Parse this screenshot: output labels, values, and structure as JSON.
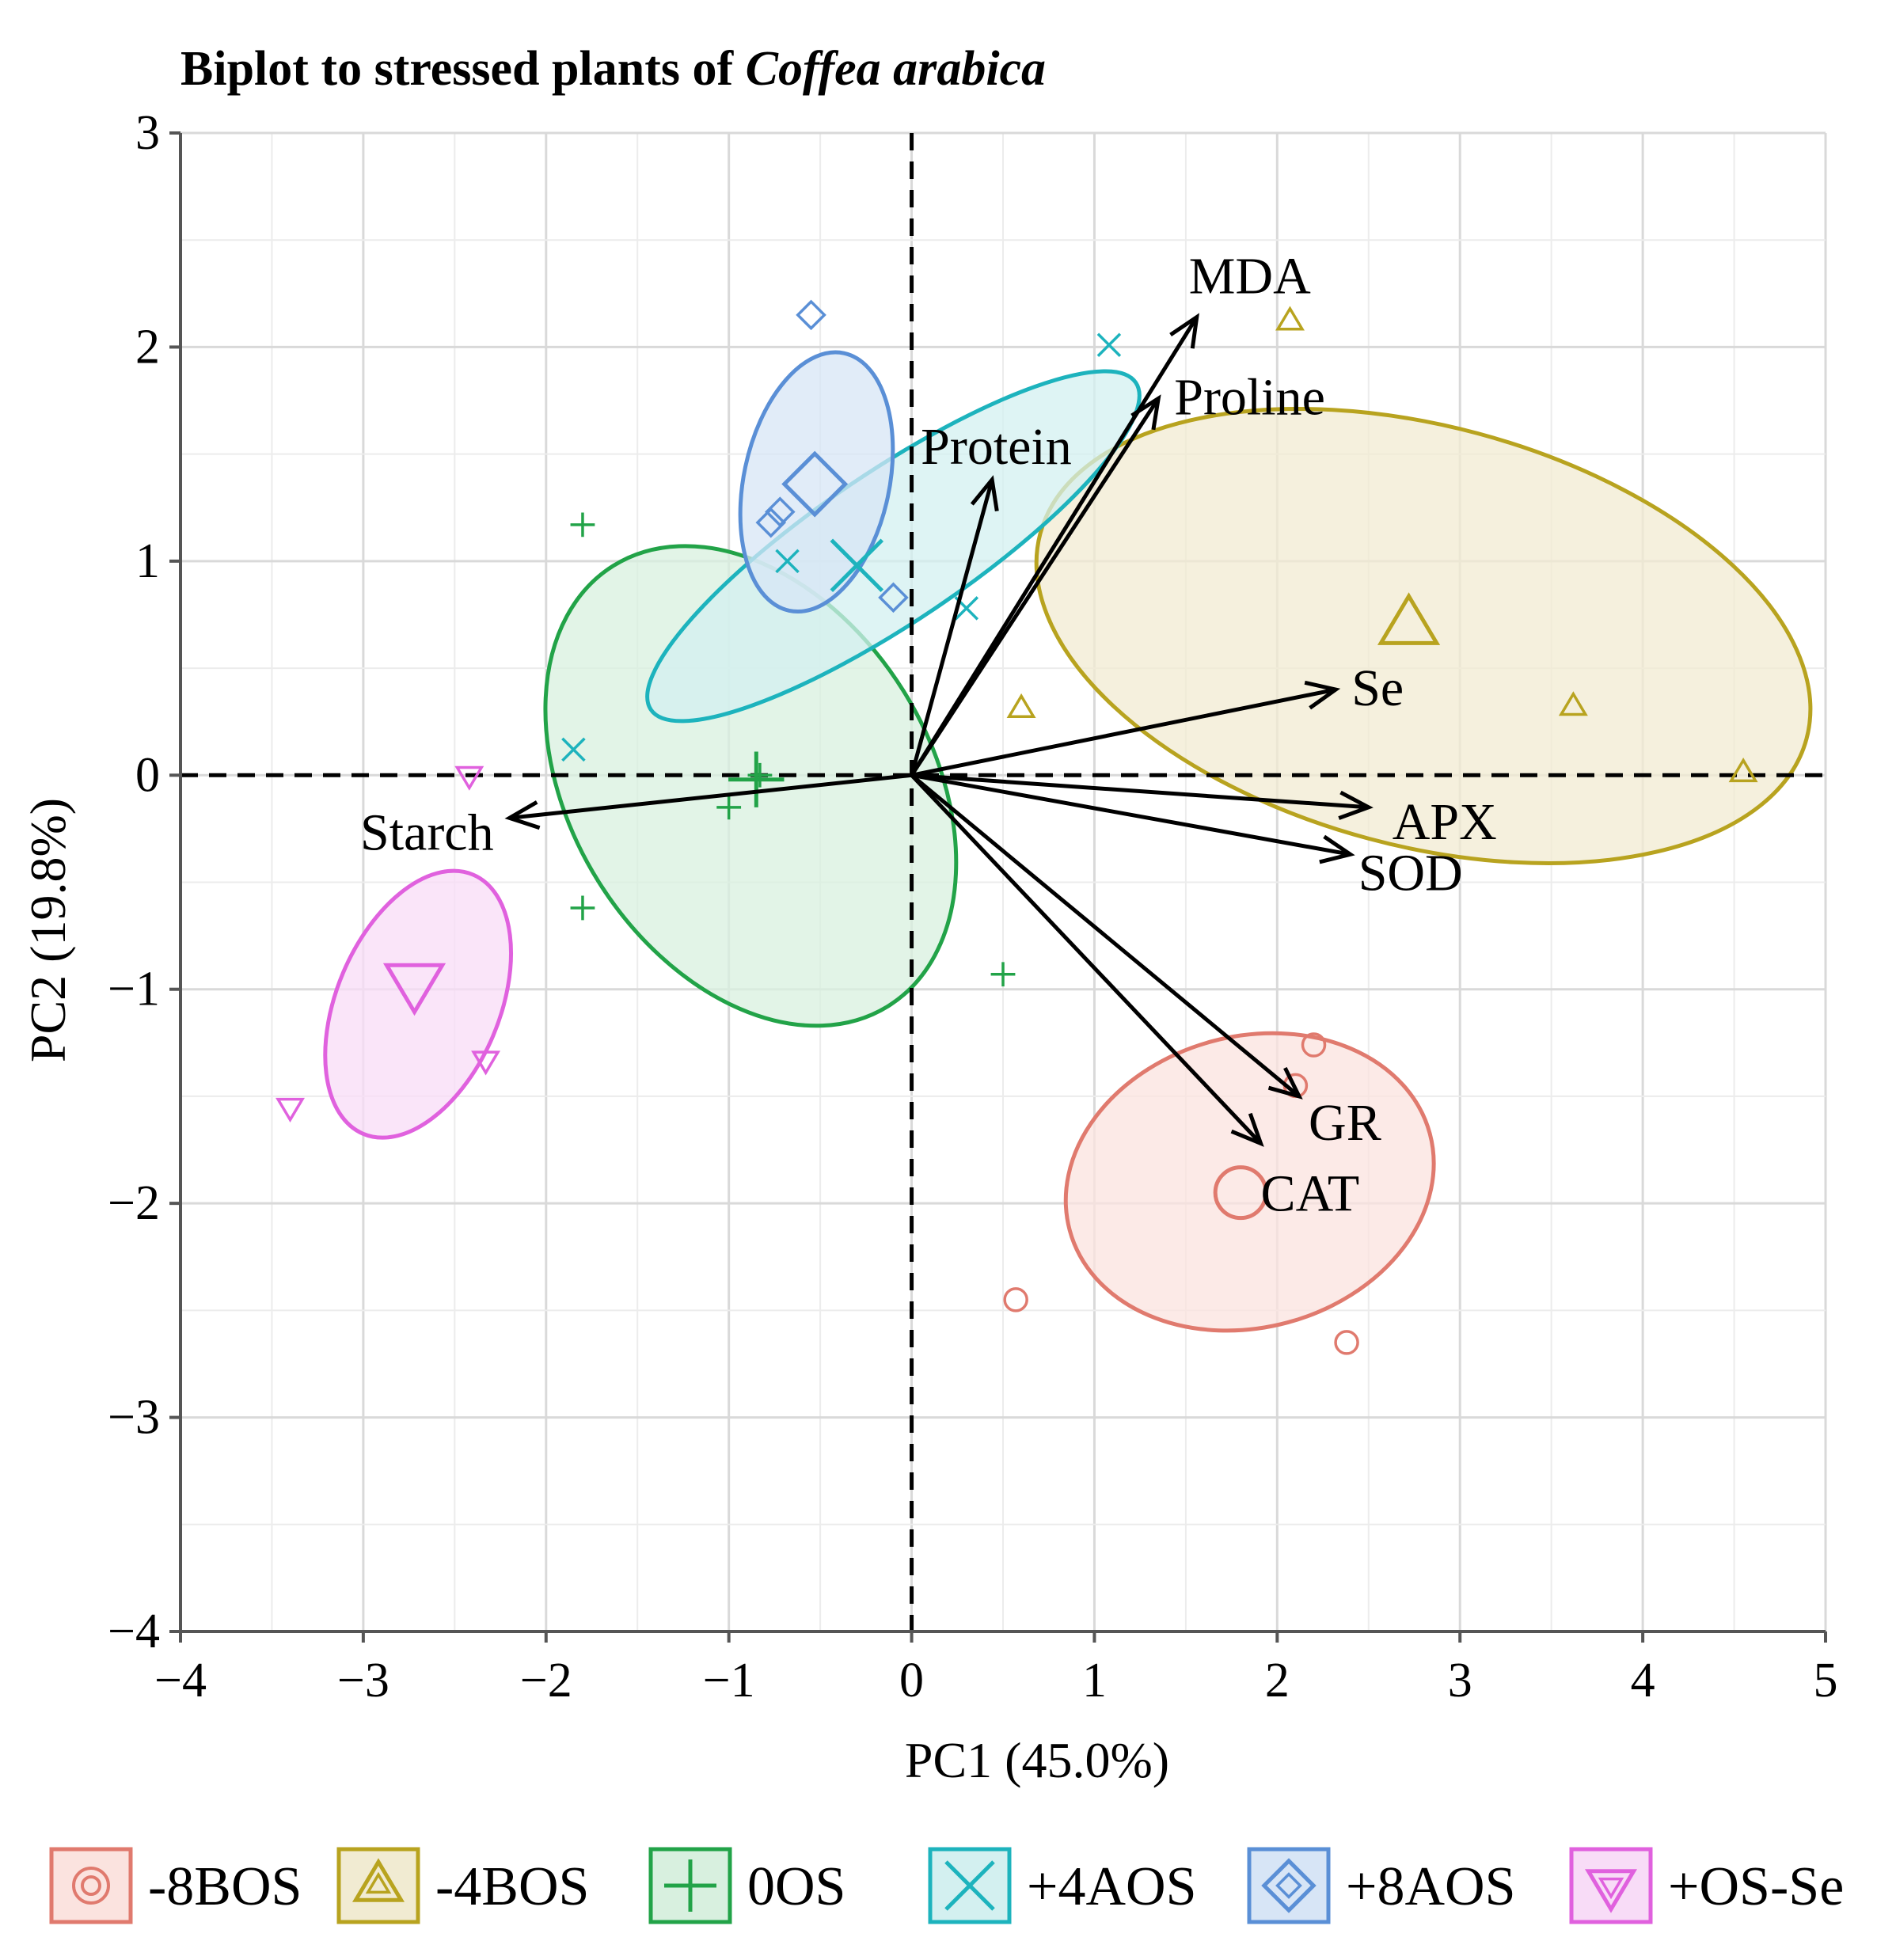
{
  "chart_data": {
    "type": "scatter",
    "title": "Biplot to stressed plants of ",
    "title_italic": "Coffea arabica",
    "xlabel": "PC1 (45.0%)",
    "ylabel": "PC2 (19.8%)",
    "xlim": [
      -4,
      5
    ],
    "ylim": [
      -4,
      3
    ],
    "xticks": [
      -4,
      -3,
      -2,
      -1,
      0,
      1,
      2,
      3,
      4,
      5
    ],
    "yticks": [
      -4,
      -3,
      -2,
      -1,
      0,
      1,
      2,
      3
    ],
    "xtick_labels": [
      "−4",
      "−3",
      "−2",
      "−1",
      "0",
      "1",
      "2",
      "3",
      "4",
      "5"
    ],
    "ytick_labels": [
      "−4",
      "−3",
      "−2",
      "−1",
      "0",
      "1",
      "2",
      "3"
    ],
    "grid": true,
    "reference_lines": {
      "x": 0,
      "y": 0,
      "style": "dashed"
    },
    "groups": [
      {
        "name": "-8BOS",
        "shape": "circle",
        "color": "#e07a6e",
        "fill": "#fbe3df",
        "points": [
          [
            2.2,
            -1.26
          ],
          [
            2.1,
            -1.45
          ],
          [
            0.57,
            -2.45
          ],
          [
            2.38,
            -2.65
          ]
        ],
        "centroid": [
          1.8,
          -1.95
        ],
        "ellipse": {
          "cx": 1.85,
          "cy": -1.9,
          "rx": 1.02,
          "ry": 0.68,
          "angle": 15
        }
      },
      {
        "name": "-4BOS",
        "shape": "triangle-up",
        "color": "#b8a31f",
        "fill": "#f1ebd2",
        "points": [
          [
            2.07,
            2.12
          ],
          [
            0.6,
            0.31
          ],
          [
            3.62,
            0.32
          ],
          [
            4.55,
            0.01
          ]
        ],
        "centroid": [
          2.72,
          0.7
        ],
        "ellipse": {
          "cx": 2.8,
          "cy": 0.65,
          "rx": 2.17,
          "ry": 0.98,
          "angle": -15
        }
      },
      {
        "name": "0OS",
        "shape": "plus",
        "color": "#22a348",
        "fill": "#d8f0df",
        "points": [
          [
            -1.8,
            1.17
          ],
          [
            -0.83,
            0.0
          ],
          [
            -1.0,
            -0.15
          ],
          [
            -1.8,
            -0.62
          ],
          [
            0.5,
            -0.93
          ]
        ],
        "centroid": [
          -0.85,
          -0.02
        ],
        "ellipse": {
          "cx": -0.88,
          "cy": -0.05,
          "rx": 1.42,
          "ry": 0.84,
          "angle": -58
        }
      },
      {
        "name": "+4AOS",
        "shape": "x",
        "color": "#1db3bd",
        "fill": "#d3f0f0",
        "points": [
          [
            1.08,
            2.01
          ],
          [
            -0.68,
            1.0
          ],
          [
            0.3,
            0.78
          ],
          [
            -1.85,
            0.12
          ]
        ],
        "centroid": [
          -0.3,
          0.98
        ],
        "ellipse": {
          "cx": -0.1,
          "cy": 1.07,
          "rx": 1.6,
          "ry": 0.35,
          "angle": 34
        }
      },
      {
        "name": "+8AOS",
        "shape": "diamond",
        "color": "#5a8fd6",
        "fill": "#d7e5f6",
        "points": [
          [
            -0.55,
            2.15
          ],
          [
            -0.72,
            1.23
          ],
          [
            -0.77,
            1.18
          ],
          [
            -0.1,
            0.83
          ]
        ],
        "centroid": [
          -0.53,
          1.36
        ],
        "ellipse": {
          "cx": -0.52,
          "cy": 1.37,
          "rx": 0.72,
          "ry": 0.34,
          "angle": 78
        }
      },
      {
        "name": "+OS-Se",
        "shape": "triangle-down",
        "color": "#e061de",
        "fill": "#f8dcf7",
        "points": [
          [
            -2.42,
            0.0
          ],
          [
            -2.33,
            -1.33
          ],
          [
            -3.4,
            -1.55
          ]
        ],
        "centroid": [
          -2.72,
          -0.97
        ],
        "ellipse": {
          "cx": -2.7,
          "cy": -1.07,
          "rx": 0.77,
          "ry": 0.38,
          "angle": 67
        }
      }
    ],
    "loadings": [
      {
        "name": "MDA",
        "x": 1.56,
        "y": 2.14
      },
      {
        "name": "Proline",
        "x": 1.35,
        "y": 1.76
      },
      {
        "name": "Protein",
        "x": 0.44,
        "y": 1.38
      },
      {
        "name": "Se",
        "x": 2.32,
        "y": 0.4
      },
      {
        "name": "APX",
        "x": 2.5,
        "y": -0.15
      },
      {
        "name": "SOD",
        "x": 2.4,
        "y": -0.37
      },
      {
        "name": "GR",
        "x": 2.12,
        "y": -1.5
      },
      {
        "name": "CAT",
        "x": 1.91,
        "y": -1.72
      },
      {
        "name": "Starch",
        "x": -2.2,
        "y": -0.2
      }
    ],
    "legend_position": "bottom"
  }
}
